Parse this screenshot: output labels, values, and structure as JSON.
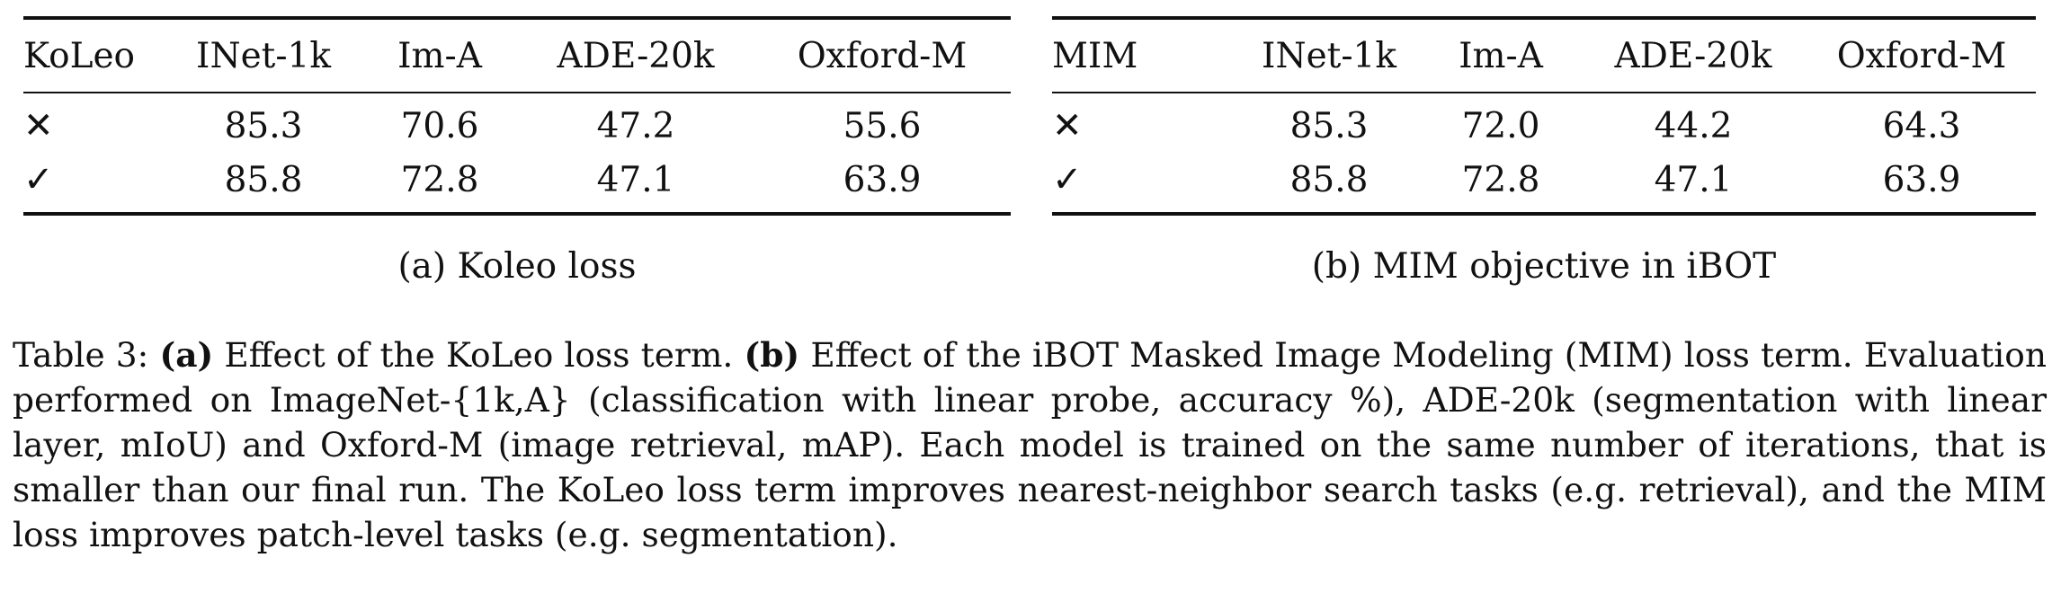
{
  "table_a": {
    "headers": [
      "KoLeo",
      "INet-1k",
      "Im-A",
      "ADE-20k",
      "Oxford-M"
    ],
    "rows": [
      [
        "✕",
        "85.3",
        "70.6",
        "47.2",
        "55.6"
      ],
      [
        "✓",
        "85.8",
        "72.8",
        "47.1",
        "63.9"
      ]
    ],
    "subcaption": "(a) Koleo loss"
  },
  "table_b": {
    "headers": [
      "MIM",
      "INet-1k",
      "Im-A",
      "ADE-20k",
      "Oxford-M"
    ],
    "rows": [
      [
        "✕",
        "85.3",
        "72.0",
        "44.2",
        "64.3"
      ],
      [
        "✓",
        "85.8",
        "72.8",
        "47.1",
        "63.9"
      ]
    ],
    "subcaption": "(b) MIM objective in iBOT"
  },
  "caption": {
    "label": "Table 3:",
    "part_a_label": "(a)",
    "part_a_text": "Effect of the KoLeo loss term.",
    "part_b_label": "(b)",
    "part_b_text": "Effect of the iBOT Masked Image Modeling (MIM) loss term. Evaluation performed on ImageNet-{1k,A} (classification with linear probe, accuracy %), ADE-20k (segmentation with linear layer, mIoU) and Oxford-M (image retrieval, mAP). Each model is trained on the same number of iterations, that is smaller than our final run. The KoLeo loss term improves nearest-neighbor search tasks (e.g. retrieval), and the MIM loss improves patch-level tasks (e.g. segmentation)."
  }
}
